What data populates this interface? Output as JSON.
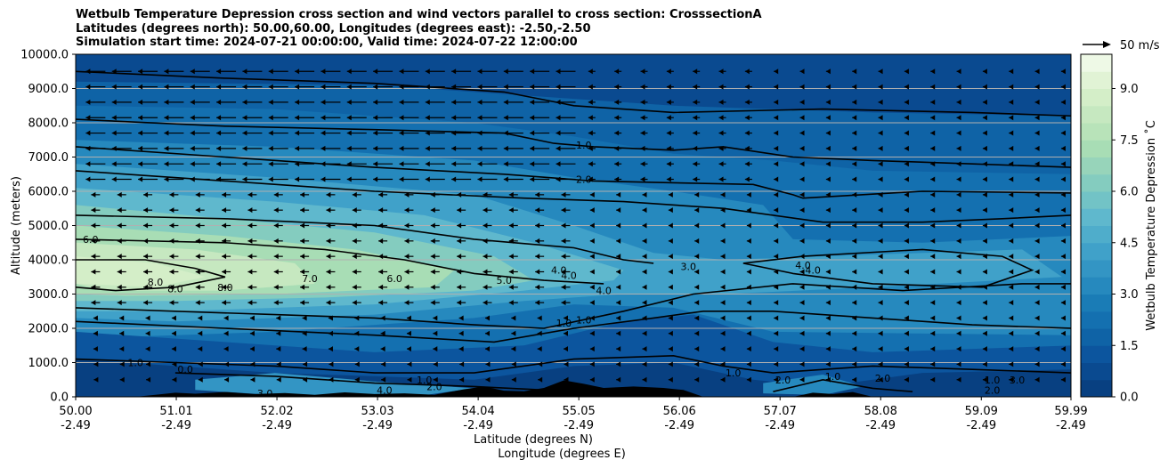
{
  "header": {
    "title_line1": "Wetbulb Temperature Depression cross section and wind vectors parallel to cross section: CrosssectionA",
    "title_line2": "Latitudes (degrees north): 50.00,60.00, Longitudes (degrees east): -2.50,-2.50",
    "title_line3": "Simulation start time: 2024-07-21 00:00:00, Valid time: 2024-07-22 12:00:00"
  },
  "chart_data": {
    "type": "heatmap",
    "title": "Wetbulb Temperature Depression cross section and wind vectors parallel to cross section: CrosssectionA",
    "xlabel_1": "Latitude (degrees N)",
    "xlabel_2": "Longitude (degrees E)",
    "ylabel": "Altitude (meters)",
    "xlim": [
      50.0,
      59.99
    ],
    "ylim": [
      0,
      10000
    ],
    "x_ticks": [
      {
        "lat": "50.00",
        "lon": "-2.49",
        "value": 50.0
      },
      {
        "lat": "51.01",
        "lon": "-2.49",
        "value": 51.01
      },
      {
        "lat": "52.02",
        "lon": "-2.49",
        "value": 52.02
      },
      {
        "lat": "53.03",
        "lon": "-2.49",
        "value": 53.03
      },
      {
        "lat": "54.04",
        "lon": "-2.49",
        "value": 54.04
      },
      {
        "lat": "55.05",
        "lon": "-2.49",
        "value": 55.05
      },
      {
        "lat": "56.06",
        "lon": "-2.49",
        "value": 56.06
      },
      {
        "lat": "57.07",
        "lon": "-2.49",
        "value": 57.07
      },
      {
        "lat": "58.08",
        "lon": "-2.49",
        "value": 58.08
      },
      {
        "lat": "59.09",
        "lon": "-2.49",
        "value": 59.09
      },
      {
        "lat": "59.99",
        "lon": "-2.49",
        "value": 59.99
      }
    ],
    "y_ticks": [
      {
        "label": "0.0",
        "value": 0
      },
      {
        "label": "1000.0",
        "value": 1000
      },
      {
        "label": "2000.0",
        "value": 2000
      },
      {
        "label": "3000.0",
        "value": 3000
      },
      {
        "label": "4000.0",
        "value": 4000
      },
      {
        "label": "5000.0",
        "value": 5000
      },
      {
        "label": "6000.0",
        "value": 6000
      },
      {
        "label": "7000.0",
        "value": 7000
      },
      {
        "label": "8000.0",
        "value": 8000
      },
      {
        "label": "9000.0",
        "value": 9000
      },
      {
        "label": "10000.0",
        "value": 10000
      }
    ],
    "grid": "horizontal",
    "colorbar": {
      "label": "Wetbulb Temperature Depression ˚C",
      "range": [
        0,
        10
      ],
      "levels": 20,
      "ticks": [
        "0.0",
        "1.5",
        "3.0",
        "4.5",
        "6.0",
        "7.5",
        "9.0"
      ],
      "colormap": "GnBu reversed",
      "colors": [
        "#084081",
        "#0a4a90",
        "#0c559e",
        "#0f63a6",
        "#1470b0",
        "#1a7cb6",
        "#2689be",
        "#3395c4",
        "#40a1c9",
        "#4fadcb",
        "#5fb8cd",
        "#72c3c6",
        "#84ccbf",
        "#97d4ba",
        "#a8ddb5",
        "#b8e3b9",
        "#c6e8c0",
        "#d4eec8",
        "#e1f3d5",
        "#eef9e6"
      ]
    },
    "wind_key": {
      "label": "50 m/s",
      "speed_ms": 50
    },
    "wind_direction": "toward decreasing latitude (left arrows), strongest aloft over 50-55 N",
    "contour_labels": [
      {
        "text": "1.0",
        "x": 55.1,
        "y": 7350
      },
      {
        "text": "2.0",
        "x": 55.1,
        "y": 6350
      },
      {
        "text": "4.0",
        "x": 54.85,
        "y": 3700
      },
      {
        "text": "4.0",
        "x": 54.95,
        "y": 3550
      },
      {
        "text": "4.0",
        "x": 55.3,
        "y": 3100
      },
      {
        "text": "5.0",
        "x": 54.3,
        "y": 3400
      },
      {
        "text": "6.0",
        "x": 53.2,
        "y": 3450
      },
      {
        "text": "7.0",
        "x": 52.35,
        "y": 3450
      },
      {
        "text": "8.0",
        "x": 51.5,
        "y": 3200
      },
      {
        "text": "8.0",
        "x": 50.8,
        "y": 3350
      },
      {
        "text": "8.0",
        "x": 51.0,
        "y": 3150
      },
      {
        "text": "6.0",
        "x": 50.15,
        "y": 4600
      },
      {
        "text": "1.0",
        "x": 54.9,
        "y": 2150
      },
      {
        "text": "1.0",
        "x": 55.1,
        "y": 2250
      },
      {
        "text": "3.0",
        "x": 56.15,
        "y": 3800
      },
      {
        "text": "4.0",
        "x": 57.3,
        "y": 3850
      },
      {
        "text": "4.0",
        "x": 57.4,
        "y": 3700
      },
      {
        "text": "1.0",
        "x": 50.6,
        "y": 1000
      },
      {
        "text": "0.0",
        "x": 51.1,
        "y": 800
      },
      {
        "text": "1.0",
        "x": 53.5,
        "y": 500
      },
      {
        "text": "2.0",
        "x": 53.6,
        "y": 300
      },
      {
        "text": "4.0",
        "x": 53.1,
        "y": 200
      },
      {
        "text": "3.0",
        "x": 51.9,
        "y": 100
      },
      {
        "text": "1.0",
        "x": 56.6,
        "y": 700
      },
      {
        "text": "2.0",
        "x": 57.1,
        "y": 500
      },
      {
        "text": "2.0",
        "x": 58.1,
        "y": 550
      },
      {
        "text": "1.0",
        "x": 59.2,
        "y": 500
      },
      {
        "text": "3.0",
        "x": 59.45,
        "y": 500
      },
      {
        "text": "2.0",
        "x": 59.2,
        "y": 200
      },
      {
        "text": "1.0",
        "x": 57.6,
        "y": 600
      }
    ]
  }
}
